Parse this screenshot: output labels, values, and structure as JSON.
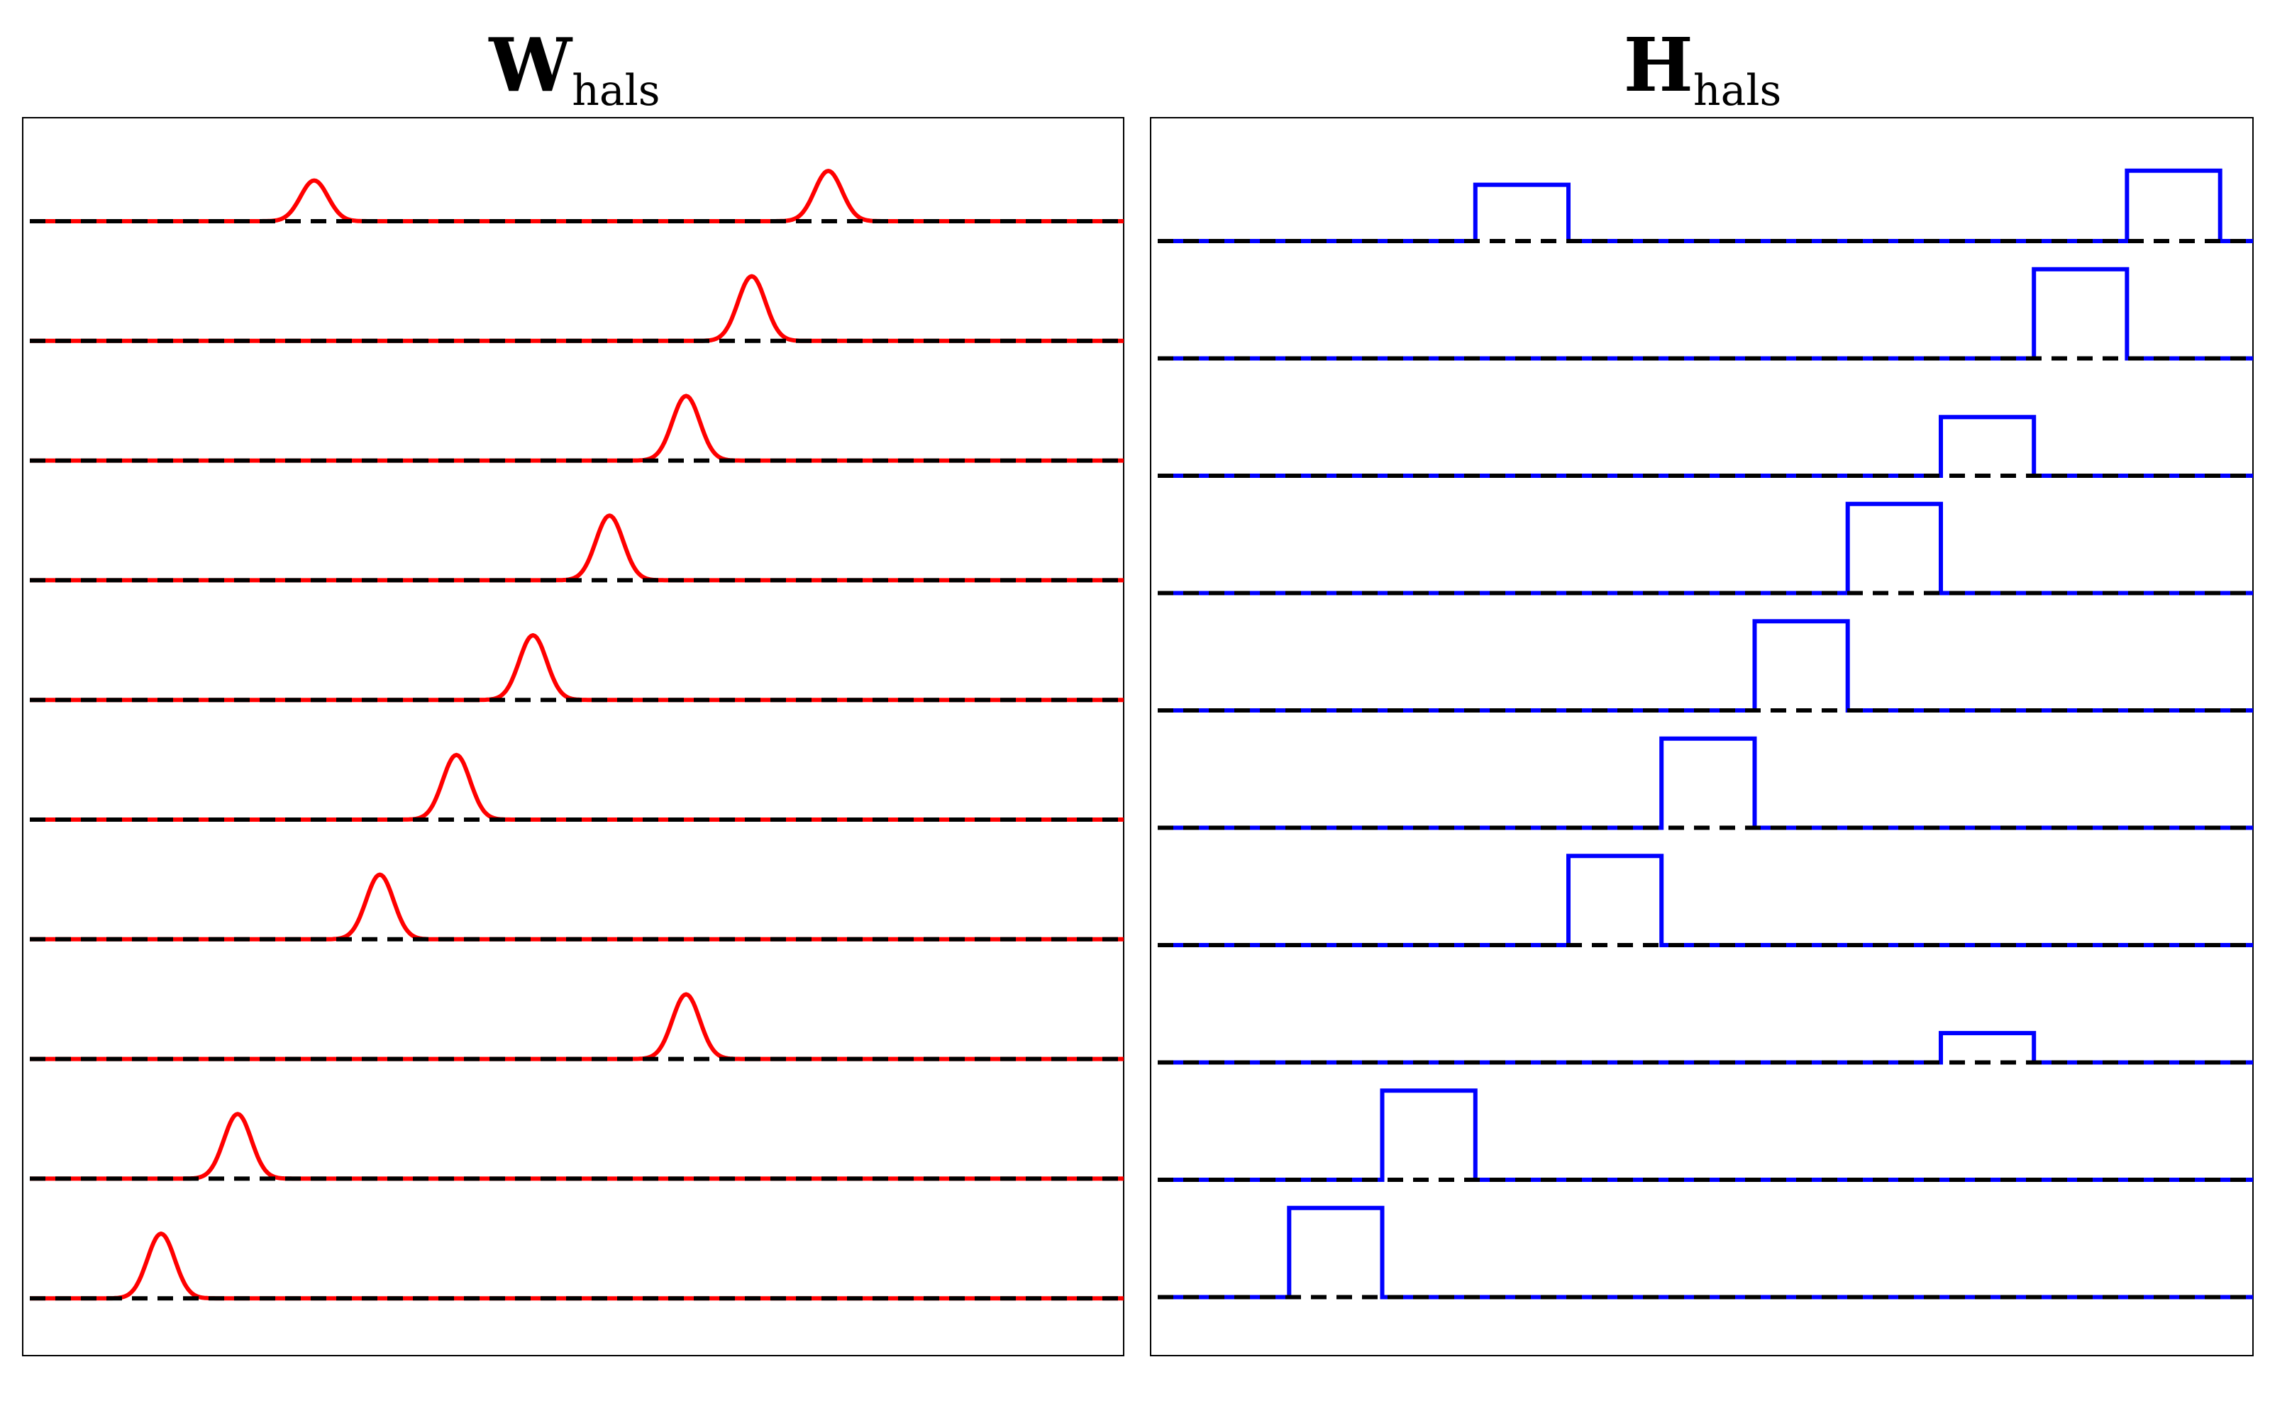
{
  "colors": {
    "w_series": "#ff0000",
    "h_series": "#0000ff",
    "baseline": "#000000",
    "frame": "#000000"
  },
  "chart_data": [
    {
      "type": "line",
      "title_main": "W",
      "title_sub": "hals",
      "grid": false,
      "axes_visible": false,
      "x_range": [
        0,
        100
      ],
      "rows": 10,
      "row_spacing": 1,
      "shape": "gaussian",
      "baseline_style": "dashed",
      "series": [
        {
          "peaks": [
            {
              "center": 26,
              "amplitude": 0.34
            },
            {
              "center": 73,
              "amplitude": 0.42
            }
          ]
        },
        {
          "peaks": [
            {
              "center": 66,
              "amplitude": 0.54
            }
          ]
        },
        {
          "peaks": [
            {
              "center": 60,
              "amplitude": 0.54
            }
          ]
        },
        {
          "peaks": [
            {
              "center": 53,
              "amplitude": 0.54
            }
          ]
        },
        {
          "peaks": [
            {
              "center": 46,
              "amplitude": 0.54
            }
          ]
        },
        {
          "peaks": [
            {
              "center": 39,
              "amplitude": 0.54
            }
          ]
        },
        {
          "peaks": [
            {
              "center": 32,
              "amplitude": 0.54
            }
          ]
        },
        {
          "peaks": [
            {
              "center": 60,
              "amplitude": 0.54
            }
          ]
        },
        {
          "peaks": [
            {
              "center": 19,
              "amplitude": 0.54
            }
          ]
        },
        {
          "peaks": [
            {
              "center": 12,
              "amplitude": 0.54
            }
          ]
        }
      ]
    },
    {
      "type": "line",
      "title_main": "H",
      "title_sub": "hals",
      "grid": false,
      "axes_visible": false,
      "x_range": [
        0,
        100
      ],
      "rows": 10,
      "row_spacing": 1,
      "shape": "rectangular-pulse",
      "baseline_style": "dashed",
      "series": [
        {
          "pulses": [
            {
              "start": 29.0,
              "end": 37.5,
              "height": 0.48
            },
            {
              "start": 88.5,
              "end": 97.0,
              "height": 0.6
            }
          ]
        },
        {
          "pulses": [
            {
              "start": 80.0,
              "end": 88.5,
              "height": 0.76
            }
          ]
        },
        {
          "pulses": [
            {
              "start": 71.5,
              "end": 80.0,
              "height": 0.5
            }
          ]
        },
        {
          "pulses": [
            {
              "start": 63.0,
              "end": 71.5,
              "height": 0.76
            }
          ]
        },
        {
          "pulses": [
            {
              "start": 54.5,
              "end": 63.0,
              "height": 0.76
            }
          ]
        },
        {
          "pulses": [
            {
              "start": 46.0,
              "end": 54.5,
              "height": 0.76
            }
          ]
        },
        {
          "pulses": [
            {
              "start": 37.5,
              "end": 46.0,
              "height": 0.76
            }
          ]
        },
        {
          "pulses": [
            {
              "start": 71.5,
              "end": 80.0,
              "height": 0.25
            }
          ]
        },
        {
          "pulses": [
            {
              "start": 20.5,
              "end": 29.0,
              "height": 0.76
            }
          ]
        },
        {
          "pulses": [
            {
              "start": 12.0,
              "end": 20.5,
              "height": 0.76
            }
          ]
        }
      ]
    }
  ]
}
